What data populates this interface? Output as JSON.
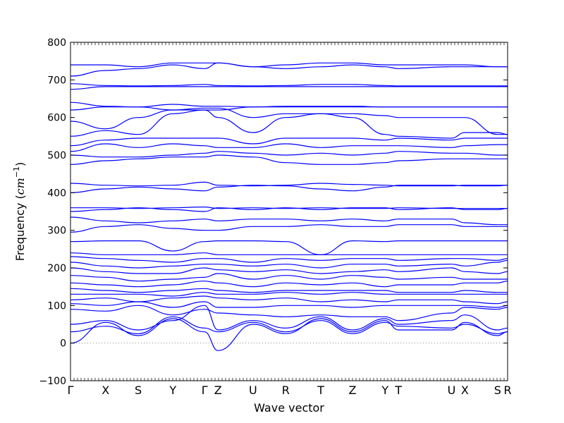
{
  "chart_data": {
    "type": "line",
    "title": "",
    "xlabel": "Wave vector",
    "ylabel_prefix": "Frequency (",
    "ylabel_unit_base": "cm",
    "ylabel_unit_exp": "−1",
    "ylabel_suffix": ")",
    "ylim": [
      -100,
      800
    ],
    "yticks": [
      -100,
      0,
      100,
      200,
      300,
      400,
      500,
      600,
      700,
      800
    ],
    "xlim": [
      0,
      13.1
    ],
    "grid": false,
    "line_color": "#0000ff",
    "zero_line_color": "#888888",
    "high_symmetry_points": [
      {
        "label": "Γ",
        "x": 0.0
      },
      {
        "label": "X",
        "x": 1.05
      },
      {
        "label": "S",
        "x": 2.03
      },
      {
        "label": "Y",
        "x": 3.07
      },
      {
        "label": "Γ",
        "x": 4.02
      },
      {
        "label": "Z",
        "x": 4.42
      },
      {
        "label": "U",
        "x": 5.47
      },
      {
        "label": "R",
        "x": 6.45
      },
      {
        "label": "T",
        "x": 7.5
      },
      {
        "label": "Z",
        "x": 8.45
      },
      {
        "label": "Y",
        "x": 9.43
      },
      {
        "label": "T",
        "x": 9.83
      },
      {
        "label": "U",
        "x": 11.42
      },
      {
        "label": "X",
        "x": 11.82
      },
      {
        "label": "S",
        "x": 12.8
      },
      {
        "label": "R",
        "x": 13.1
      }
    ],
    "series": [
      {
        "y": [
          0,
          55,
          20,
          65,
          30,
          -20,
          50,
          25,
          65,
          30,
          60,
          35,
          35,
          55,
          20,
          30
        ]
      },
      {
        "y": [
          30,
          45,
          25,
          70,
          40,
          30,
          55,
          30,
          60,
          25,
          55,
          45,
          40,
          50,
          25,
          30
        ]
      },
      {
        "y": [
          50,
          60,
          35,
          60,
          100,
          35,
          60,
          40,
          70,
          35,
          65,
          50,
          60,
          75,
          35,
          40
        ]
      },
      {
        "y": [
          90,
          85,
          100,
          75,
          90,
          80,
          75,
          70,
          75,
          70,
          70,
          60,
          80,
          95,
          90,
          95
        ]
      },
      {
        "y": [
          105,
          100,
          110,
          95,
          110,
          95,
          95,
          100,
          100,
          95,
          100,
          100,
          100,
          100,
          95,
          100
        ]
      },
      {
        "y": [
          115,
          120,
          110,
          120,
          125,
          120,
          115,
          120,
          110,
          115,
          110,
          115,
          115,
          110,
          105,
          110
        ]
      },
      {
        "y": [
          130,
          130,
          130,
          125,
          135,
          130,
          130,
          135,
          130,
          135,
          130,
          130,
          130,
          130,
          130,
          130
        ]
      },
      {
        "y": [
          145,
          140,
          135,
          140,
          145,
          140,
          135,
          140,
          140,
          140,
          140,
          135,
          135,
          140,
          135,
          135
        ]
      },
      {
        "y": [
          160,
          155,
          150,
          155,
          165,
          160,
          150,
          160,
          155,
          160,
          150,
          155,
          155,
          160,
          160,
          165
        ]
      },
      {
        "y": [
          180,
          175,
          165,
          170,
          175,
          185,
          170,
          180,
          170,
          180,
          175,
          170,
          175,
          170,
          170,
          170
        ]
      },
      {
        "y": [
          200,
          190,
          185,
          185,
          200,
          195,
          190,
          195,
          185,
          190,
          195,
          190,
          200,
          190,
          185,
          190
        ]
      },
      {
        "y": [
          215,
          205,
          200,
          205,
          210,
          210,
          205,
          210,
          200,
          210,
          210,
          205,
          210,
          205,
          215,
          220
        ]
      },
      {
        "y": [
          230,
          225,
          220,
          215,
          225,
          225,
          215,
          225,
          220,
          225,
          225,
          220,
          225,
          225,
          220,
          225
        ]
      },
      {
        "y": [
          240,
          235,
          235,
          235,
          240,
          235,
          235,
          235,
          235,
          235,
          235,
          235,
          235,
          235,
          235,
          235
        ]
      },
      {
        "y": [
          270,
          272,
          272,
          245,
          270,
          272,
          272,
          270,
          235,
          272,
          270,
          272,
          272,
          272,
          272,
          272
        ]
      },
      {
        "y": [
          295,
          310,
          315,
          305,
          300,
          300,
          310,
          310,
          315,
          310,
          310,
          315,
          315,
          310,
          310,
          310
        ]
      },
      {
        "y": [
          335,
          325,
          320,
          325,
          330,
          325,
          330,
          330,
          325,
          330,
          325,
          330,
          330,
          320,
          315,
          315
        ]
      },
      {
        "y": [
          350,
          355,
          360,
          355,
          350,
          360,
          355,
          360,
          355,
          360,
          360,
          355,
          360,
          355,
          355,
          358
        ]
      },
      {
        "y": [
          360,
          360,
          358,
          360,
          362,
          358,
          360,
          358,
          360,
          358,
          358,
          360,
          358,
          358,
          358,
          358
        ]
      },
      {
        "y": [
          400,
          410,
          415,
          410,
          405,
          415,
          420,
          418,
          410,
          405,
          415,
          420,
          420,
          418,
          418,
          420
        ]
      },
      {
        "y": [
          425,
          420,
          418,
          420,
          428,
          420,
          418,
          420,
          425,
          422,
          420,
          418,
          418,
          420,
          420,
          420
        ]
      },
      {
        "y": [
          475,
          485,
          490,
          495,
          495,
          500,
          495,
          480,
          475,
          475,
          480,
          485,
          490,
          490,
          490,
          490
        ]
      },
      {
        "y": [
          500,
          495,
          495,
          500,
          505,
          510,
          505,
          500,
          505,
          500,
          505,
          510,
          505,
          505,
          500,
          500
        ]
      },
      {
        "y": [
          510,
          530,
          520,
          530,
          525,
          520,
          520,
          530,
          520,
          525,
          525,
          525,
          520,
          525,
          528,
          528
        ]
      },
      {
        "y": [
          525,
          540,
          545,
          545,
          545,
          545,
          530,
          545,
          545,
          545,
          540,
          545,
          540,
          545,
          545,
          545
        ]
      },
      {
        "y": [
          550,
          565,
          555,
          610,
          620,
          600,
          560,
          600,
          610,
          600,
          555,
          550,
          545,
          560,
          560,
          555
        ]
      },
      {
        "y": [
          590,
          570,
          600,
          620,
          625,
          625,
          600,
          610,
          610,
          610,
          605,
          600,
          600,
          600,
          555,
          555
        ]
      },
      {
        "y": [
          640,
          630,
          628,
          635,
          630,
          630,
          628,
          630,
          630,
          630,
          628,
          628,
          628,
          628,
          628,
          628
        ]
      },
      {
        "y": [
          620,
          628,
          628,
          620,
          620,
          620,
          628,
          628,
          628,
          628,
          628,
          628,
          628,
          628,
          628,
          628
        ]
      },
      {
        "y": [
          675,
          682,
          682,
          682,
          682,
          682,
          682,
          682,
          682,
          682,
          682,
          682,
          682,
          682,
          682,
          682
        ]
      },
      {
        "y": [
          690,
          685,
          684,
          685,
          688,
          685,
          684,
          685,
          688,
          688,
          685,
          684,
          684,
          684,
          684,
          684
        ]
      },
      {
        "y": [
          710,
          725,
          730,
          740,
          730,
          745,
          735,
          730,
          735,
          740,
          735,
          730,
          735,
          735,
          735,
          735
        ]
      },
      {
        "y": [
          740,
          740,
          735,
          745,
          745,
          745,
          735,
          740,
          745,
          745,
          740,
          740,
          740,
          740,
          735,
          735
        ]
      }
    ]
  }
}
